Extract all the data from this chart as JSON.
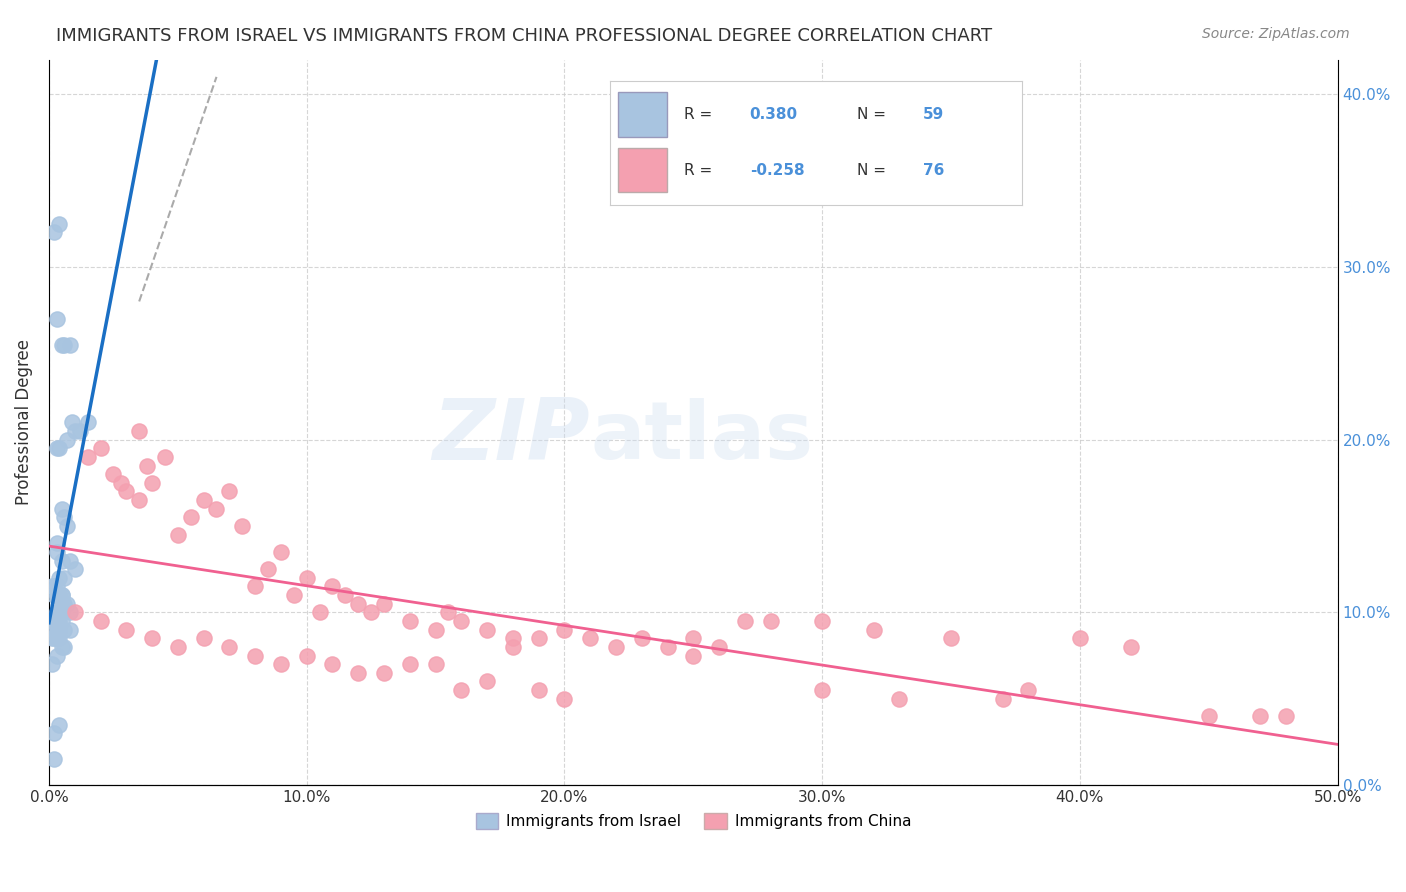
{
  "title": "IMMIGRANTS FROM ISRAEL VS IMMIGRANTS FROM CHINA PROFESSIONAL DEGREE CORRELATION CHART",
  "source": "Source: ZipAtlas.com",
  "ylabel": "Professional Degree",
  "xlim": [
    0,
    50
  ],
  "ylim": [
    0,
    42
  ],
  "israel_R": 0.38,
  "israel_N": 59,
  "china_R": -0.258,
  "china_N": 76,
  "israel_color": "#a8c4e0",
  "china_color": "#f4a0b0",
  "israel_line_color": "#1a6fc4",
  "china_line_color": "#f06090",
  "background_color": "#ffffff",
  "israel_x": [
    0.2,
    0.4,
    0.3,
    0.8,
    0.5,
    0.6,
    0.9,
    1.0,
    1.2,
    0.7,
    0.3,
    0.4,
    0.5,
    0.6,
    0.7,
    0.3,
    0.5,
    0.8,
    1.0,
    0.4,
    0.6,
    0.2,
    0.3,
    0.1,
    0.5,
    0.4,
    0.3,
    0.2,
    0.6,
    0.5,
    0.7,
    0.8,
    0.4,
    0.3,
    0.5,
    1.5,
    0.2,
    0.1,
    0.3,
    0.4,
    0.5,
    0.6,
    0.8,
    0.2,
    0.3,
    0.4,
    0.1,
    0.2,
    0.3,
    0.4,
    0.5,
    0.6,
    0.3,
    0.1,
    0.2,
    0.4,
    0.5,
    0.3,
    0.2
  ],
  "israel_y": [
    32.0,
    32.5,
    27.0,
    25.5,
    25.5,
    25.5,
    21.0,
    20.5,
    20.5,
    20.0,
    19.5,
    19.5,
    16.0,
    15.5,
    15.0,
    13.5,
    13.0,
    13.0,
    12.5,
    12.0,
    12.0,
    11.5,
    11.5,
    11.5,
    11.0,
    11.0,
    11.0,
    11.0,
    10.5,
    10.5,
    10.5,
    10.0,
    10.0,
    10.0,
    10.0,
    21.0,
    9.5,
    9.5,
    9.5,
    9.5,
    9.5,
    9.0,
    9.0,
    9.0,
    9.0,
    9.0,
    8.5,
    8.5,
    8.5,
    8.5,
    8.0,
    8.0,
    7.5,
    7.0,
    3.0,
    3.5,
    11.0,
    14.0,
    1.5
  ],
  "china_x": [
    1.5,
    2.0,
    2.5,
    2.8,
    3.0,
    3.5,
    3.8,
    4.0,
    4.5,
    5.0,
    5.5,
    6.0,
    6.5,
    7.0,
    7.5,
    8.0,
    8.5,
    9.0,
    9.5,
    10.0,
    10.5,
    11.0,
    11.5,
    12.0,
    12.5,
    13.0,
    14.0,
    15.0,
    15.5,
    16.0,
    17.0,
    18.0,
    19.0,
    20.0,
    21.0,
    22.0,
    23.0,
    24.0,
    25.0,
    26.0,
    27.0,
    28.0,
    30.0,
    32.0,
    33.0,
    35.0,
    37.0,
    38.0,
    40.0,
    42.0,
    45.0,
    47.0,
    1.0,
    2.0,
    3.0,
    4.0,
    5.0,
    6.0,
    7.0,
    8.0,
    9.0,
    10.0,
    11.0,
    12.0,
    13.0,
    14.0,
    15.0,
    16.0,
    17.0,
    18.0,
    19.0,
    20.0,
    25.0,
    30.0,
    48.0,
    3.5
  ],
  "china_y": [
    19.0,
    19.5,
    18.0,
    17.5,
    17.0,
    16.5,
    18.5,
    17.5,
    19.0,
    14.5,
    15.5,
    16.5,
    16.0,
    17.0,
    15.0,
    11.5,
    12.5,
    13.5,
    11.0,
    12.0,
    10.0,
    11.5,
    11.0,
    10.5,
    10.0,
    10.5,
    9.5,
    9.0,
    10.0,
    9.5,
    9.0,
    8.5,
    8.5,
    9.0,
    8.5,
    8.0,
    8.5,
    8.0,
    8.5,
    8.0,
    9.5,
    9.5,
    9.5,
    9.0,
    5.0,
    8.5,
    5.0,
    5.5,
    8.5,
    8.0,
    4.0,
    4.0,
    10.0,
    9.5,
    9.0,
    8.5,
    8.0,
    8.5,
    8.0,
    7.5,
    7.0,
    7.5,
    7.0,
    6.5,
    6.5,
    7.0,
    7.0,
    5.5,
    6.0,
    8.0,
    5.5,
    5.0,
    7.5,
    5.5,
    4.0,
    20.5
  ]
}
